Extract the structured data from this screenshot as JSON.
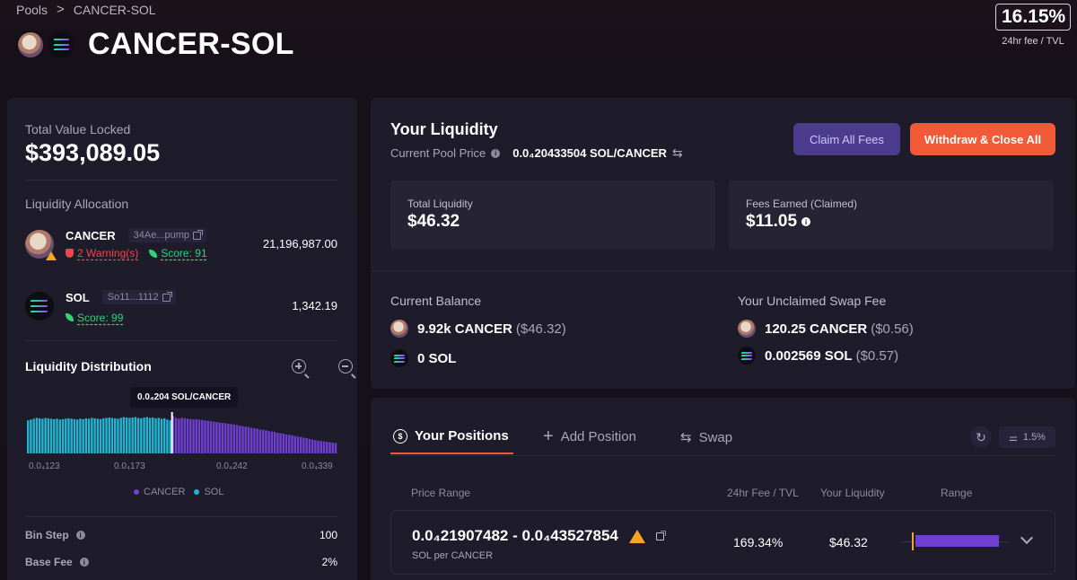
{
  "breadcrumb": {
    "root": "Pools",
    "separator": ">",
    "current": "CANCER-SOL"
  },
  "header": {
    "title": "CANCER-SOL",
    "fee_pct": "16.15%",
    "fee_label": "24hr fee / TVL"
  },
  "left": {
    "tvl_label": "Total Value Locked",
    "tvl_value": "$393,089.05",
    "alloc_title": "Liquidity Allocation",
    "tokens": [
      {
        "name": "CANCER",
        "address": "34Ae...pump",
        "warning": "2 Warning(s)",
        "score": "Score: 91",
        "amount": "21,196,987.00"
      },
      {
        "name": "SOL",
        "address": "So11...1112",
        "score": "Score: 99",
        "amount": "1,342.19"
      }
    ],
    "dist_title": "Liquidity Distribution",
    "tooltip": "0.0₄204 SOL/CANCER",
    "ticks": [
      "0.0₄123",
      "0.0₄173",
      "0.0₄242",
      "0.0₄339"
    ],
    "legend": [
      "CANCER",
      "SOL"
    ],
    "bin_step_label": "Bin Step",
    "bin_step_value": "100",
    "base_fee_label": "Base Fee",
    "base_fee_value": "2%"
  },
  "liquidity": {
    "title": "Your Liquidity",
    "price_label": "Current Pool Price",
    "price_value": "0.0₄20433504 SOL/CANCER",
    "claim_button": "Claim All Fees",
    "withdraw_button": "Withdraw & Close All",
    "total_label": "Total Liquidity",
    "total_value": "$46.32",
    "fees_label": "Fees Earned (Claimed)",
    "fees_value": "$11.05",
    "balance_label": "Current Balance",
    "balance": [
      {
        "amount": "9.92k CANCER",
        "usd": "($46.32)"
      },
      {
        "amount": "0 SOL",
        "usd": ""
      }
    ],
    "unclaimed_label": "Your Unclaimed Swap Fee",
    "unclaimed": [
      {
        "amount": "120.25 CANCER",
        "usd": "($0.56)"
      },
      {
        "amount": "0.002569 SOL",
        "usd": "($0.57)"
      }
    ]
  },
  "positions": {
    "tabs": [
      "Your Positions",
      "Add Position",
      "Swap"
    ],
    "slippage": "1.5%",
    "columns": [
      "Price Range",
      "24hr Fee / TVL",
      "Your Liquidity",
      "Range"
    ],
    "rows": [
      {
        "range": "0.0₄21907482 - 0.0₄43527854",
        "unit": "SOL per CANCER",
        "fee_tvl": "169.34%",
        "liquidity": "$46.32"
      }
    ]
  },
  "chart_data": {
    "type": "bar",
    "title": "Liquidity Distribution",
    "x_ticks": [
      "0.0₄123",
      "0.0₄173",
      "0.0₄242",
      "0.0₄339"
    ],
    "active_price": "0.0₄204 SOL/CANCER",
    "series": [
      {
        "name": "SOL"
      },
      {
        "name": "CANCER"
      }
    ],
    "sol_values": [
      0.8,
      0.82,
      0.84,
      0.86,
      0.85,
      0.84,
      0.86,
      0.85,
      0.84,
      0.83,
      0.84,
      0.82,
      0.83,
      0.84,
      0.85,
      0.84,
      0.83,
      0.82,
      0.84,
      0.83,
      0.85,
      0.84,
      0.86,
      0.85,
      0.84,
      0.83,
      0.85,
      0.86,
      0.87,
      0.86,
      0.85,
      0.84,
      0.86,
      0.88,
      0.87,
      0.86,
      0.87,
      0.88,
      0.86,
      0.85,
      0.87,
      0.88,
      0.86,
      0.87,
      0.85,
      0.86,
      0.84,
      0.85,
      0.82,
      0.8
    ],
    "cancer_values": [
      0.9,
      0.86,
      0.84,
      0.86,
      0.85,
      0.84,
      0.83,
      0.82,
      0.83,
      0.82,
      0.81,
      0.8,
      0.79,
      0.78,
      0.77,
      0.76,
      0.75,
      0.74,
      0.73,
      0.72,
      0.71,
      0.7,
      0.69,
      0.67,
      0.66,
      0.65,
      0.64,
      0.62,
      0.61,
      0.6,
      0.58,
      0.57,
      0.56,
      0.54,
      0.53,
      0.52,
      0.5,
      0.49,
      0.48,
      0.46,
      0.45,
      0.44,
      0.42,
      0.41,
      0.4,
      0.38,
      0.37,
      0.35,
      0.34,
      0.32,
      0.31,
      0.3,
      0.29,
      0.28,
      0.27,
      0.26,
      0.25
    ],
    "colors": {
      "sol": "#22b5d3",
      "cancer": "#6f3fd1",
      "active": "#ffffff"
    }
  }
}
